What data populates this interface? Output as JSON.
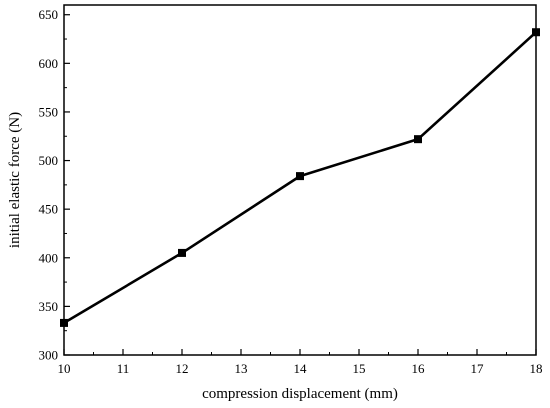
{
  "chart_data": {
    "type": "line",
    "title": "",
    "xlabel": "compression displacement (mm)",
    "ylabel": "initial elastic force (N)",
    "xlim": [
      10,
      18
    ],
    "ylim": [
      300,
      660
    ],
    "x_major_ticks": [
      10,
      11,
      12,
      13,
      14,
      15,
      16,
      17,
      18
    ],
    "x_tick_labels": [
      "10",
      "11",
      "12",
      "13",
      "14",
      "15",
      "16",
      "17",
      "18"
    ],
    "y_major_ticks": [
      300,
      350,
      400,
      450,
      500,
      550,
      600,
      650
    ],
    "y_tick_labels": [
      "300",
      "350",
      "400",
      "450",
      "500",
      "550",
      "600",
      "650"
    ],
    "grid": false,
    "legend": "none",
    "series": [
      {
        "x": [
          10,
          12,
          14,
          16,
          18
        ],
        "y": [
          333,
          405,
          484,
          522,
          632
        ],
        "color": "#000000",
        "marker": "square"
      }
    ]
  }
}
